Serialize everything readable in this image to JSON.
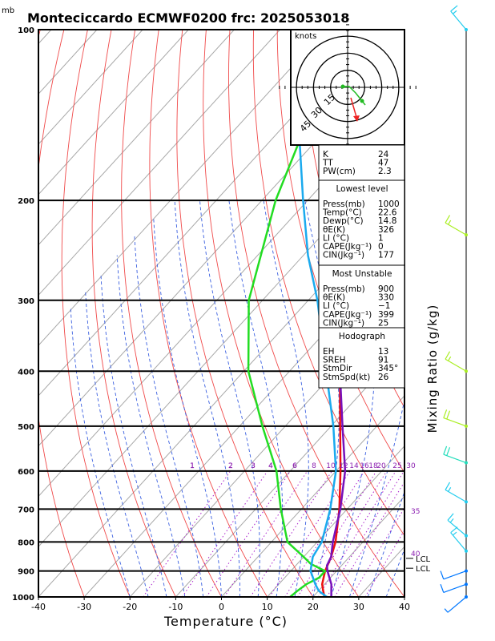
{
  "header": {
    "title": "Monteciccardo ECMWF0200 frc: 2025053018",
    "pressure_unit": "mb"
  },
  "chart_data": {
    "type": "line",
    "subtype": "skew-T log-p sounding",
    "xlabel": "Temperature (°C)",
    "ylabel": "Mixing Ratio (g/kg)",
    "xlim": [
      -40,
      40
    ],
    "ylim": [
      1000,
      100
    ],
    "x_ticks": [
      "-40",
      "-30",
      "-20",
      "-10",
      "0",
      "10",
      "20",
      "30",
      "40"
    ],
    "pressure_levels": [
      "100",
      "200",
      "300",
      "400",
      "500",
      "600",
      "700",
      "800",
      "900",
      "1000"
    ],
    "mixing_ratio_labels": [
      "1",
      "2",
      "3",
      "4",
      "6",
      "8",
      "10",
      "12",
      "14",
      "16",
      "18",
      "20",
      "25",
      "30"
    ],
    "isotherm_labels": [
      "35",
      "40"
    ],
    "lcl_labels": [
      "LCL",
      "LCL"
    ],
    "series": [
      {
        "name": "temperature",
        "color": "#ee1111",
        "points": [
          [
            1000,
            22.5
          ],
          [
            975,
            21
          ],
          [
            950,
            19.5
          ],
          [
            925,
            18.5
          ],
          [
            900,
            17.5
          ],
          [
            850,
            16
          ],
          [
            800,
            14
          ],
          [
            700,
            8.3
          ],
          [
            600,
            1
          ],
          [
            500,
            -8
          ],
          [
            400,
            -19
          ],
          [
            300,
            -33
          ],
          [
            250,
            -43
          ],
          [
            200,
            -51
          ],
          [
            150,
            -59
          ],
          [
            100,
            -63
          ]
        ]
      },
      {
        "name": "dewpoint",
        "color": "#22dd22",
        "points": [
          [
            1000,
            15
          ],
          [
            975,
            15.4
          ],
          [
            950,
            16
          ],
          [
            925,
            17.5
          ],
          [
            900,
            17.5
          ],
          [
            875,
            13
          ],
          [
            850,
            10
          ],
          [
            800,
            3.5
          ],
          [
            700,
            -4.5
          ],
          [
            600,
            -13
          ],
          [
            500,
            -25
          ],
          [
            400,
            -39
          ],
          [
            300,
            -53
          ],
          [
            200,
            -67
          ],
          [
            100,
            -86
          ]
        ]
      },
      {
        "name": "parcel",
        "color": "#1aaaee",
        "points": [
          [
            1000,
            23
          ],
          [
            975,
            20
          ],
          [
            950,
            18
          ],
          [
            900,
            14.3
          ],
          [
            850,
            12
          ],
          [
            800,
            11
          ],
          [
            700,
            6.3
          ],
          [
            600,
            0
          ],
          [
            500,
            -9.5
          ],
          [
            400,
            -22
          ],
          [
            300,
            -38
          ],
          [
            250,
            -49
          ],
          [
            200,
            -61
          ],
          [
            150,
            -76
          ],
          [
            120,
            -86
          ]
        ]
      },
      {
        "name": "virtual-temperature",
        "color": "#7711bb",
        "points": [
          [
            1000,
            24
          ],
          [
            950,
            21.5
          ],
          [
            900,
            18
          ],
          [
            880,
            16.8
          ],
          [
            850,
            16
          ],
          [
            800,
            13.4
          ],
          [
            700,
            8.5
          ],
          [
            600,
            2
          ],
          [
            500,
            -7.5
          ],
          [
            400,
            -19
          ],
          [
            300,
            -33.5
          ],
          [
            250,
            -43
          ],
          [
            200,
            -55
          ],
          [
            150,
            -68
          ],
          [
            120,
            -78
          ]
        ]
      }
    ],
    "wind_barbs": [
      {
        "p": 100,
        "dir": 320,
        "kt": 15,
        "color": "#22ccee"
      },
      {
        "p": 230,
        "dir": 300,
        "kt": 15,
        "color": "#aaee22"
      },
      {
        "p": 400,
        "dir": 300,
        "kt": 15,
        "color": "#aaee22"
      },
      {
        "p": 500,
        "dir": 290,
        "kt": 20,
        "color": "#aaee22"
      },
      {
        "p": 580,
        "dir": 290,
        "kt": 20,
        "color": "#22ddbb"
      },
      {
        "p": 680,
        "dir": 300,
        "kt": 15,
        "color": "#22ccee"
      },
      {
        "p": 780,
        "dir": 310,
        "kt": 15,
        "color": "#22ccee"
      },
      {
        "p": 830,
        "dir": 320,
        "kt": 15,
        "color": "#22ccee"
      },
      {
        "p": 900,
        "dir": 250,
        "kt": 10,
        "color": "#0077ff"
      },
      {
        "p": 950,
        "dir": 250,
        "kt": 10,
        "color": "#0077ff"
      },
      {
        "p": 1000,
        "dir": 230,
        "kt": 5,
        "color": "#0077ff"
      }
    ],
    "hodograph": {
      "label": "knots",
      "ring_labels": [
        "15",
        "30",
        "45"
      ]
    }
  },
  "indices": {
    "general": [
      {
        "label": "K",
        "value": "24"
      },
      {
        "label": "TT",
        "value": "47"
      },
      {
        "label": "PW(cm)",
        "value": "2.3"
      }
    ],
    "lowest_level": {
      "heading": "Lowest level",
      "rows": [
        {
          "label": "Press(mb)",
          "value": "1000"
        },
        {
          "label": "Temp(°C)",
          "value": "22.6"
        },
        {
          "label": "Dewp(°C)",
          "value": "14.8"
        },
        {
          "label": "θE(K)",
          "value": "326"
        },
        {
          "label": "LI (°C)",
          "value": "1"
        },
        {
          "label": "CAPE(Jkg⁻¹)",
          "value": "0"
        },
        {
          "label": "CIN(Jkg⁻¹)",
          "value": "177"
        }
      ]
    },
    "most_unstable": {
      "heading": "Most Unstable",
      "rows": [
        {
          "label": "Press(mb)",
          "value": "900"
        },
        {
          "label": "θE(K)",
          "value": "330"
        },
        {
          "label": "LI (°C)",
          "value": "−1"
        },
        {
          "label": "CAPE(Jkg⁻¹)",
          "value": "399"
        },
        {
          "label": "CIN(Jkg⁻¹)",
          "value": "25"
        }
      ]
    },
    "hodograph": {
      "heading": "Hodograph",
      "rows": [
        {
          "label": "EH",
          "value": "13"
        },
        {
          "label": "SREH",
          "value": "91"
        },
        {
          "label": "StmDir",
          "value": "345°"
        },
        {
          "label": "StmSpd(kt)",
          "value": "26"
        }
      ]
    }
  }
}
